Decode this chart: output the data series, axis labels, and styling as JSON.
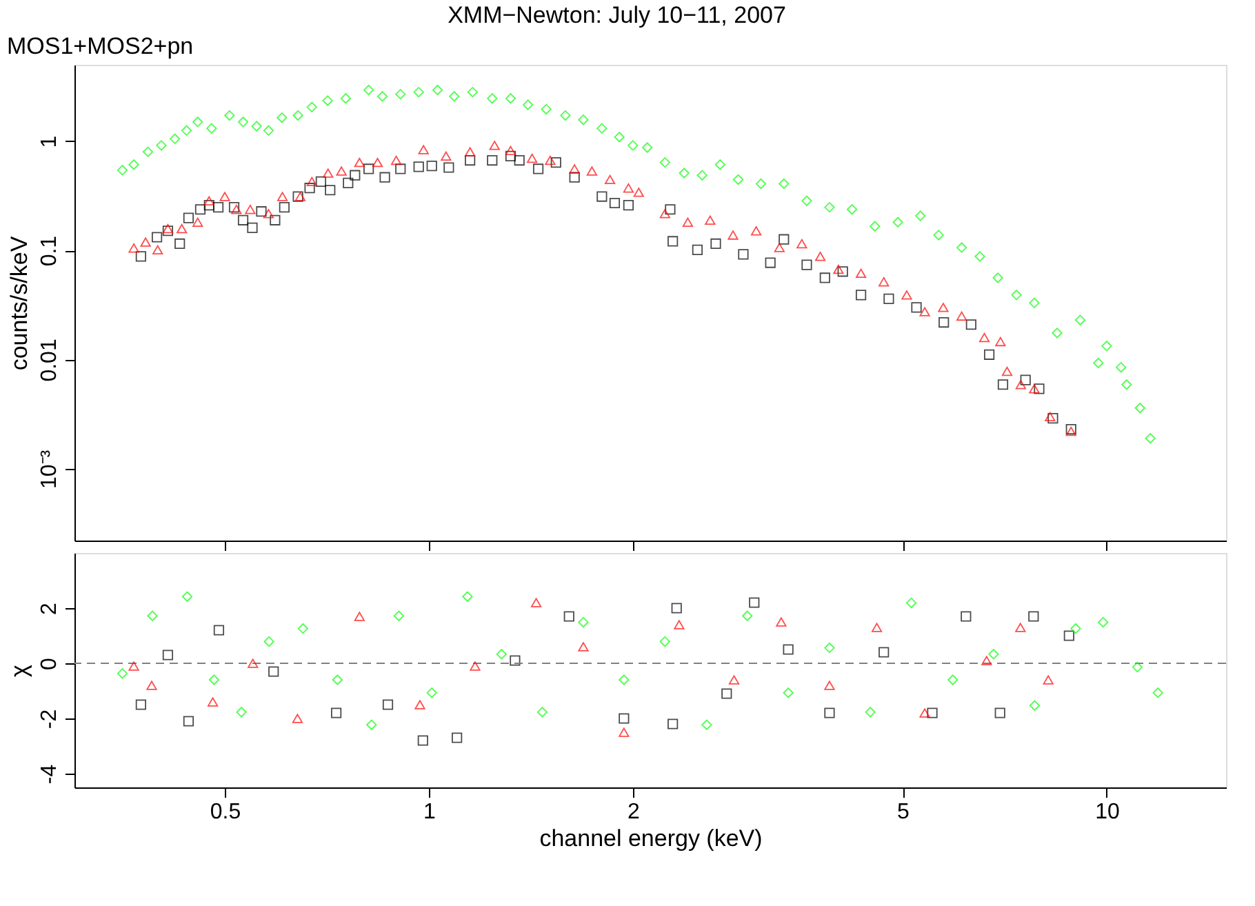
{
  "chart_data": [
    {
      "type": "scatter",
      "title": "XMM−Newton: July 10−11, 2007",
      "subtitle": "MOS1+MOS2+pn",
      "ylabel": "counts/s/keV",
      "log": "xy",
      "grid": false,
      "tick_labels": "y",
      "xlim": [
        0.3,
        15
      ],
      "xticks": [
        0.5,
        1,
        2,
        5,
        10
      ],
      "ylim": [
        0.00022,
        5
      ],
      "yticks": [
        {
          "value": 0.001,
          "label": "10⁻³"
        },
        0.01,
        0.1,
        1
      ],
      "series": [
        {
          "color": "#000000",
          "marker": "square",
          "x": [
            0.376,
            0.397,
            0.412,
            0.429,
            0.442,
            0.46,
            0.474,
            0.489,
            0.516,
            0.532,
            0.549,
            0.566,
            0.593,
            0.612,
            0.641,
            0.667,
            0.693,
            0.715,
            0.76,
            0.778,
            0.815,
            0.861,
            0.908,
            0.966,
            1.01,
            1.07,
            1.15,
            1.24,
            1.32,
            1.36,
            1.45,
            1.54,
            1.64,
            1.8,
            1.88,
            1.97,
            2.27,
            2.29,
            2.49,
            2.65,
            2.91,
            3.19,
            3.34,
            3.61,
            3.84,
            4.08,
            4.34,
            4.77,
            5.24,
            5.75,
            6.31,
            6.71,
            7.03,
            7.59,
            7.95,
            8.33,
            8.86
          ],
          "values": [
            0.088,
            0.132,
            0.151,
            0.115,
            0.198,
            0.237,
            0.259,
            0.248,
            0.248,
            0.189,
            0.161,
            0.227,
            0.189,
            0.248,
            0.311,
            0.372,
            0.426,
            0.356,
            0.414,
            0.487,
            0.557,
            0.466,
            0.557,
            0.583,
            0.593,
            0.573,
            0.667,
            0.667,
            0.73,
            0.667,
            0.557,
            0.638,
            0.466,
            0.311,
            0.271,
            0.259,
            0.237,
            0.121,
            0.101,
            0.115,
            0.092,
            0.077,
            0.126,
            0.0736,
            0.056,
            0.064,
            0.039,
            0.036,
            0.03,
            0.0219,
            0.0209,
            0.0111,
            0.0059,
            0.0065,
            0.0054,
            0.0029,
            0.0023
          ]
        },
        {
          "color": "#ff0000",
          "marker": "triangle",
          "x": [
            0.367,
            0.382,
            0.398,
            0.412,
            0.432,
            0.456,
            0.474,
            0.5,
            0.52,
            0.545,
            0.58,
            0.608,
            0.646,
            0.672,
            0.71,
            0.743,
            0.79,
            0.84,
            0.895,
            0.982,
            1.06,
            1.15,
            1.25,
            1.32,
            1.42,
            1.51,
            1.64,
            1.74,
            1.85,
            1.97,
            2.04,
            2.23,
            2.41,
            2.6,
            2.81,
            3.04,
            3.29,
            3.55,
            3.78,
            4.02,
            4.34,
            4.69,
            5.07,
            5.39,
            5.74,
            6.11,
            6.6,
            6.97,
            7.13,
            7.47,
            7.82,
            8.25,
            8.86
          ],
          "values": [
            0.105,
            0.119,
            0.101,
            0.158,
            0.158,
            0.181,
            0.284,
            0.311,
            0.237,
            0.237,
            0.217,
            0.311,
            0.311,
            0.426,
            0.51,
            0.533,
            0.638,
            0.638,
            0.667,
            0.835,
            0.73,
            0.799,
            0.914,
            0.82,
            0.697,
            0.667,
            0.557,
            0.533,
            0.445,
            0.372,
            0.34,
            0.217,
            0.181,
            0.189,
            0.138,
            0.151,
            0.106,
            0.115,
            0.088,
            0.067,
            0.0616,
            0.0515,
            0.039,
            0.0274,
            0.03,
            0.025,
            0.0159,
            0.0146,
            0.0078,
            0.0059,
            0.0054,
            0.003,
            0.0022
          ]
        },
        {
          "color": "#00ff00",
          "marker": "diamond",
          "x": [
            0.353,
            0.367,
            0.385,
            0.403,
            0.422,
            0.439,
            0.456,
            0.478,
            0.508,
            0.532,
            0.557,
            0.58,
            0.607,
            0.641,
            0.672,
            0.709,
            0.754,
            0.815,
            0.854,
            0.908,
            0.966,
            1.03,
            1.09,
            1.16,
            1.24,
            1.32,
            1.4,
            1.49,
            1.59,
            1.69,
            1.8,
            1.91,
            2.0,
            2.1,
            2.23,
            2.38,
            2.53,
            2.69,
            2.86,
            3.09,
            3.34,
            3.61,
            3.9,
            4.21,
            4.55,
            4.92,
            5.31,
            5.65,
            6.11,
            6.5,
            6.91,
            7.36,
            7.82,
            8.45,
            9.14,
            9.72,
            10.0,
            10.5,
            10.7,
            11.2,
            11.6
          ],
          "values": [
            0.542,
            0.61,
            0.799,
            0.914,
            1.05,
            1.25,
            1.5,
            1.31,
            1.72,
            1.5,
            1.37,
            1.25,
            1.64,
            1.72,
            2.05,
            2.35,
            2.46,
            2.94,
            2.57,
            2.69,
            2.81,
            2.94,
            2.57,
            2.81,
            2.46,
            2.46,
            2.15,
            1.96,
            1.72,
            1.57,
            1.31,
            1.09,
            0.914,
            0.874,
            0.638,
            0.51,
            0.487,
            0.61,
            0.445,
            0.407,
            0.407,
            0.284,
            0.248,
            0.237,
            0.166,
            0.181,
            0.207,
            0.138,
            0.106,
            0.088,
            0.056,
            0.039,
            0.033,
            0.0175,
            0.023,
            0.0093,
            0.0133,
            0.0085,
            0.0059,
            0.0036,
            0.0019
          ]
        }
      ]
    },
    {
      "type": "scatter",
      "xlabel": "channel energy (keV)",
      "ylabel": "χ",
      "log": "x",
      "grid": false,
      "xlim": [
        0.3,
        15
      ],
      "xticks": [
        0.5,
        1,
        2,
        5,
        10
      ],
      "ylim": [
        -4.5,
        4
      ],
      "yticks": [
        -4,
        -2,
        0,
        2
      ],
      "ref_lines": [
        {
          "axis": "y",
          "value": 0,
          "color": "#808080",
          "line_style": "dashed"
        }
      ],
      "series": [
        {
          "color": "#000000",
          "marker": "square",
          "x": [
            0.376,
            0.412,
            0.442,
            0.49,
            0.59,
            0.73,
            0.87,
            0.98,
            1.1,
            1.34,
            1.61,
            1.94,
            2.29,
            2.32,
            2.75,
            3.02,
            3.39,
            3.9,
            4.69,
            5.53,
            6.2,
            6.96,
            7.8,
            8.8
          ],
          "values": [
            -1.5,
            0.3,
            -2.1,
            1.2,
            -0.3,
            -1.8,
            -1.5,
            -2.8,
            -2.7,
            0.1,
            1.7,
            -2.0,
            -2.2,
            2.0,
            -1.1,
            2.2,
            0.5,
            -1.8,
            0.4,
            -1.8,
            1.7,
            -1.8,
            1.7,
            1.0
          ]
        },
        {
          "color": "#ff0000",
          "marker": "triangle",
          "x": [
            0.367,
            0.39,
            0.48,
            0.55,
            0.64,
            0.79,
            0.97,
            1.17,
            1.44,
            1.69,
            1.94,
            2.34,
            2.82,
            3.31,
            3.9,
            4.58,
            5.39,
            6.65,
            7.46,
            8.2
          ],
          "values": [
            -0.1,
            -0.8,
            -1.4,
            0.0,
            -2.0,
            1.7,
            -1.5,
            -0.1,
            2.2,
            0.6,
            -2.5,
            1.4,
            -0.6,
            1.5,
            -0.8,
            1.3,
            -1.8,
            0.1,
            1.3,
            -0.6
          ]
        },
        {
          "color": "#00ff00",
          "marker": "diamond",
          "x": [
            0.353,
            0.391,
            0.44,
            0.482,
            0.529,
            0.581,
            0.652,
            0.733,
            0.823,
            0.903,
            1.01,
            1.14,
            1.28,
            1.47,
            1.69,
            1.94,
            2.23,
            2.57,
            2.95,
            3.39,
            3.9,
            4.48,
            5.15,
            5.93,
            6.81,
            7.83,
            9.0,
            9.88,
            11.1,
            11.9
          ],
          "values": [
            -0.37,
            1.72,
            2.42,
            -0.6,
            -1.77,
            0.79,
            1.26,
            -0.6,
            -2.23,
            1.72,
            -1.07,
            2.42,
            0.33,
            -1.77,
            1.49,
            -0.6,
            0.79,
            -2.23,
            1.72,
            -1.07,
            0.56,
            -1.77,
            2.19,
            -0.6,
            0.33,
            -1.53,
            1.26,
            1.49,
            -0.14,
            -1.07
          ]
        }
      ]
    }
  ]
}
